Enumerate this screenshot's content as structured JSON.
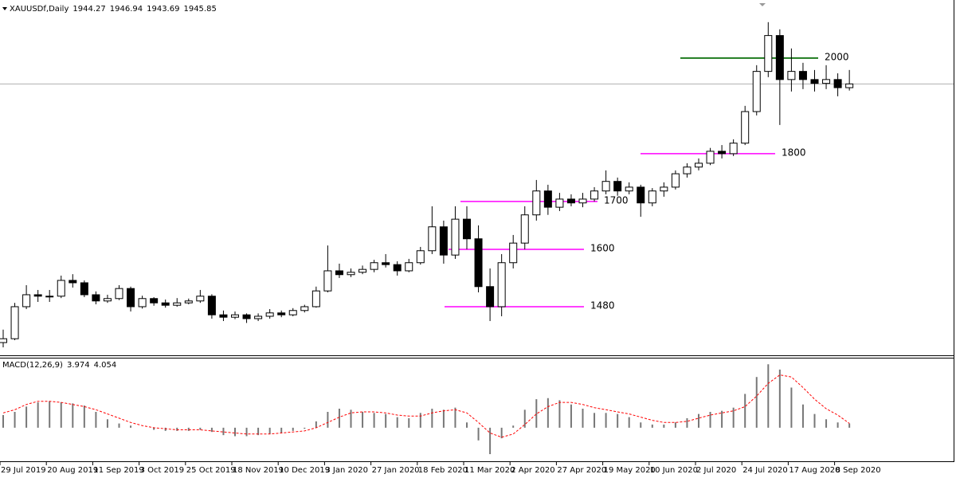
{
  "chart_data": [
    {
      "type": "candlestick",
      "title": "XAUUSDf,Daily",
      "quote": [
        1944.27,
        1946.94,
        1943.69,
        1945.85
      ],
      "categories": [
        "29 Jul 2019",
        null,
        null,
        null,
        "20 Aug 2019",
        null,
        null,
        null,
        "11 Sep 2019",
        null,
        null,
        null,
        "3 Oct 2019",
        null,
        null,
        null,
        "25 Oct 2019",
        null,
        null,
        null,
        "18 Nov 2019",
        null,
        null,
        null,
        "10 Dec 2019",
        null,
        null,
        null,
        "3 Jan 2020",
        null,
        null,
        null,
        "27 Jan 2020",
        null,
        null,
        null,
        "18 Feb 2020",
        null,
        null,
        null,
        "11 Mar 2020",
        null,
        null,
        null,
        "2 Apr 2020",
        null,
        null,
        null,
        "27 Apr 2020",
        null,
        null,
        null,
        "19 May 2020",
        null,
        null,
        null,
        "10 Jun 2020",
        null,
        null,
        null,
        "2 Jul 2020",
        null,
        null,
        null,
        "24 Jul 2020",
        null,
        null,
        null,
        "17 Aug 2020",
        null,
        null,
        null,
        "8 Sep 2020",
        null
      ],
      "open": [
        1405,
        1413,
        1480,
        1505,
        1502,
        1502,
        1535,
        1530,
        1505,
        1492,
        1497,
        1518,
        1480,
        1497,
        1488,
        1483,
        1488,
        1492,
        1502,
        1463,
        1458,
        1463,
        1455,
        1460,
        1467,
        1463,
        1472,
        1480,
        1513,
        1555,
        1547,
        1552,
        1558,
        1572,
        1568,
        1555,
        1572,
        1597,
        1647,
        1588,
        1663,
        1622,
        1522,
        1480,
        1572,
        1613,
        1672,
        1722,
        1688,
        1705,
        1697,
        1705,
        1722,
        1742,
        1722,
        1730,
        1697,
        1722,
        1730,
        1758,
        1772,
        1780,
        1805,
        1800,
        1822,
        1888,
        1972,
        2047,
        1955,
        1972,
        1955,
        1947,
        1955,
        1938
      ],
      "high": [
        1432,
        1488,
        1525,
        1515,
        1515,
        1545,
        1548,
        1535,
        1512,
        1505,
        1525,
        1522,
        1503,
        1500,
        1495,
        1498,
        1497,
        1515,
        1506,
        1472,
        1470,
        1466,
        1466,
        1475,
        1472,
        1477,
        1484,
        1522,
        1608,
        1570,
        1560,
        1566,
        1578,
        1590,
        1575,
        1580,
        1605,
        1690,
        1660,
        1690,
        1690,
        1650,
        1560,
        1590,
        1630,
        1690,
        1745,
        1735,
        1718,
        1715,
        1718,
        1730,
        1765,
        1750,
        1740,
        1735,
        1728,
        1740,
        1765,
        1780,
        1790,
        1812,
        1818,
        1830,
        1900,
        1985,
        2075,
        2060,
        2020,
        1990,
        1975,
        1985,
        1968,
        1975
      ],
      "low": [
        1395,
        1410,
        1475,
        1490,
        1490,
        1498,
        1520,
        1500,
        1485,
        1488,
        1494,
        1470,
        1476,
        1482,
        1478,
        1480,
        1485,
        1488,
        1455,
        1450,
        1454,
        1446,
        1450,
        1455,
        1458,
        1460,
        1468,
        1478,
        1510,
        1540,
        1542,
        1548,
        1552,
        1562,
        1545,
        1552,
        1568,
        1590,
        1570,
        1580,
        1600,
        1510,
        1450,
        1460,
        1560,
        1600,
        1660,
        1672,
        1680,
        1690,
        1688,
        1700,
        1715,
        1712,
        1715,
        1668,
        1690,
        1710,
        1725,
        1750,
        1765,
        1776,
        1790,
        1795,
        1818,
        1880,
        1960,
        1860,
        1930,
        1935,
        1930,
        1935,
        1920,
        1932
      ],
      "close": [
        1413,
        1480,
        1505,
        1502,
        1502,
        1535,
        1530,
        1505,
        1492,
        1497,
        1518,
        1480,
        1497,
        1488,
        1483,
        1488,
        1492,
        1502,
        1463,
        1458,
        1463,
        1455,
        1460,
        1467,
        1463,
        1472,
        1480,
        1513,
        1555,
        1547,
        1552,
        1558,
        1572,
        1568,
        1555,
        1572,
        1597,
        1647,
        1588,
        1663,
        1622,
        1522,
        1480,
        1572,
        1613,
        1672,
        1722,
        1688,
        1705,
        1697,
        1705,
        1722,
        1742,
        1722,
        1730,
        1697,
        1722,
        1730,
        1758,
        1772,
        1780,
        1805,
        1800,
        1822,
        1888,
        1972,
        2047,
        1955,
        1972,
        1955,
        1947,
        1955,
        1938,
        1945.85
      ],
      "ylim": [
        1380,
        2108
      ],
      "levels": [
        {
          "value": 2000,
          "color": "#1e7b1e"
        },
        {
          "value": 1800,
          "color": "#ff00ff"
        },
        {
          "value": 1700,
          "color": "#ff00ff"
        },
        {
          "value": 1600,
          "color": "#ff00ff"
        },
        {
          "value": 1480,
          "color": "#ff00ff"
        }
      ]
    },
    {
      "type": "macd",
      "title": "MACD(12,26,9)",
      "readout": [
        3.974,
        4.054
      ],
      "histogram": [
        12,
        15,
        20,
        24,
        25,
        24,
        23,
        21,
        15,
        8,
        4,
        2,
        0,
        -2,
        -3,
        -3,
        -3,
        -2,
        -4,
        -7,
        -8,
        -8,
        -7,
        -6,
        -5,
        -3,
        -1,
        6,
        15,
        18,
        17,
        15,
        14,
        13,
        10,
        9,
        14,
        18,
        17,
        19,
        5,
        -12,
        -25,
        -10,
        2,
        17,
        27,
        28,
        26,
        22,
        18,
        14,
        14,
        13,
        10,
        5,
        3,
        3,
        5,
        9,
        13,
        15,
        16,
        19,
        32,
        48,
        60,
        55,
        38,
        22,
        13,
        8,
        5,
        3.974
      ],
      "signal": [
        14,
        17,
        22,
        25,
        25,
        24,
        22,
        20,
        17,
        13,
        9,
        5,
        2,
        0,
        -1,
        -2,
        -2,
        -2,
        -3,
        -4,
        -5,
        -6,
        -6,
        -6,
        -5,
        -4,
        -3,
        0,
        5,
        10,
        14,
        15,
        15,
        14,
        12,
        11,
        11,
        14,
        16,
        17,
        14,
        5,
        -5,
        -9,
        -6,
        3,
        13,
        20,
        24,
        24,
        22,
        19,
        17,
        15,
        13,
        10,
        7,
        5,
        5,
        6,
        9,
        12,
        14,
        16,
        20,
        30,
        42,
        50,
        48,
        38,
        27,
        18,
        12,
        4.054
      ],
      "ylim": [
        -31,
        64
      ],
      "histogram_color": "#777777",
      "signal_color": "#ff0000"
    }
  ]
}
